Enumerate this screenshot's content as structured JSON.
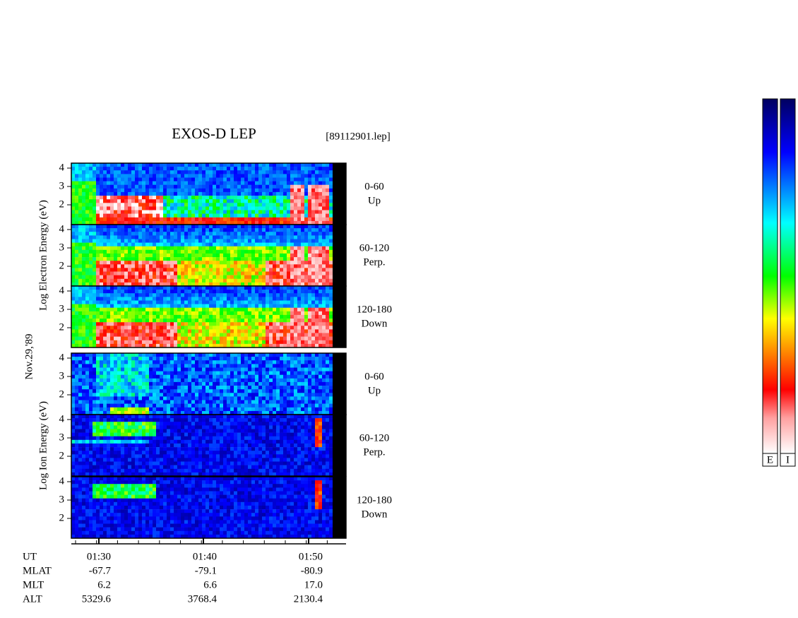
{
  "header": {
    "title": "EXOS-D LEP",
    "file": "[89112901.lep]"
  },
  "date": "Nov.29,'89",
  "groups": [
    {
      "axis_label": "Log Electron Energy (eV)",
      "panels": [
        {
          "range": "0-60",
          "direction": "Up",
          "yticks": [
            2,
            3,
            4
          ]
        },
        {
          "range": "60-120",
          "direction": "Perp.",
          "yticks": [
            2,
            3,
            4
          ]
        },
        {
          "range": "120-180",
          "direction": "Down",
          "yticks": [
            2,
            3,
            4
          ]
        }
      ]
    },
    {
      "axis_label": "Log Ion Energy (eV)",
      "panels": [
        {
          "range": "0-60",
          "direction": "Up",
          "yticks": [
            2,
            3,
            4
          ]
        },
        {
          "range": "60-120",
          "direction": "Perp.",
          "yticks": [
            2,
            3,
            4
          ]
        },
        {
          "range": "120-180",
          "direction": "Down",
          "yticks": [
            2,
            3,
            4
          ]
        }
      ]
    }
  ],
  "time_axis": {
    "label": "UT",
    "ticks": [
      "01:30",
      "01:40",
      "01:50"
    ]
  },
  "orbit": {
    "rows": [
      {
        "label": "MLAT",
        "values": [
          "-67.7",
          "-79.1",
          "-80.9"
        ]
      },
      {
        "label": "MLT",
        "values": [
          "6.2",
          "6.6",
          "17.0"
        ]
      },
      {
        "label": "ALT",
        "values": [
          "5329.6",
          "3768.4",
          "2130.4"
        ]
      }
    ]
  },
  "colorbars": [
    "E",
    "I"
  ]
}
